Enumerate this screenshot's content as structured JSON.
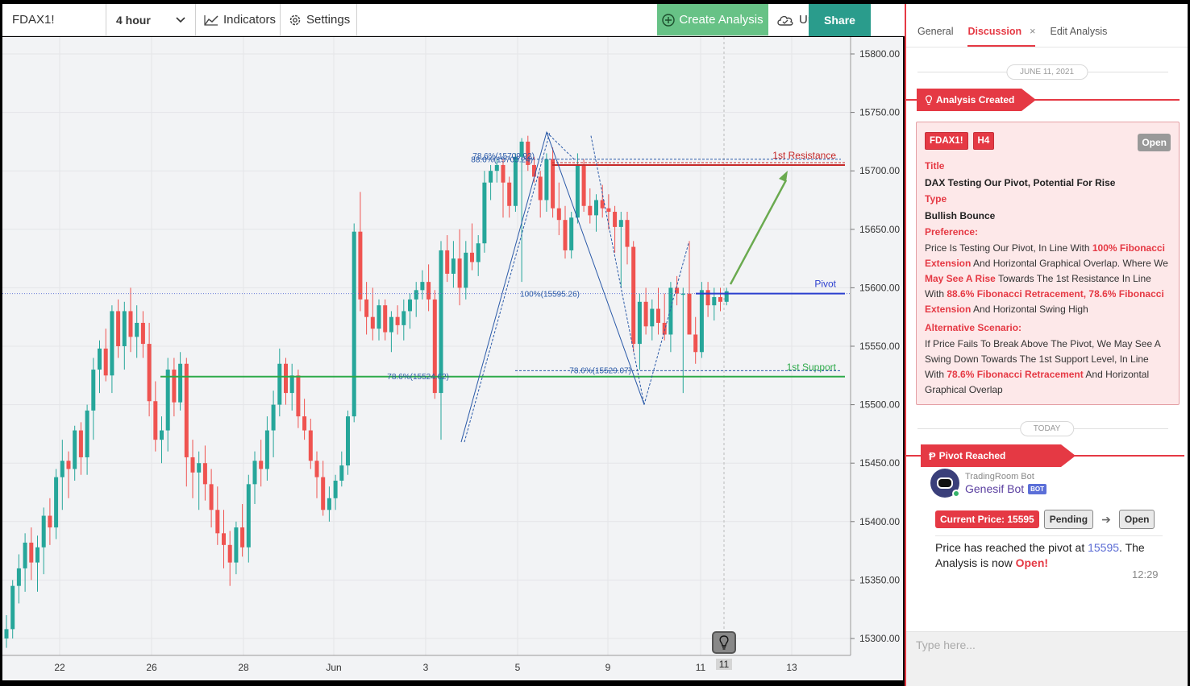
{
  "toolbar": {
    "symbol": "FDAX1!",
    "interval": "4 hour",
    "indicators_label": "Indicators",
    "settings_label": "Settings",
    "create_label": "Create Analysis",
    "layout_name": "Untitled",
    "share_label": "Share"
  },
  "chart": {
    "price_axis": [
      "15800.00",
      "15750.00",
      "15700.00",
      "15650.00",
      "15600.00",
      "15550.00",
      "15500.00",
      "15450.00",
      "15400.00",
      "15350.00",
      "15300.00"
    ],
    "time_axis": [
      "22",
      "26",
      "28",
      "Jun",
      "3",
      "5",
      "9",
      "11",
      "13"
    ],
    "current_label": "11",
    "lines": {
      "resistance": {
        "label": "1st Resistance",
        "color": "#c62828",
        "value": 15705
      },
      "pivot": {
        "label": "Pivot",
        "color": "#2b3fcf",
        "value": 15595
      },
      "support": {
        "label": "1st Support",
        "color": "#2eaa4a",
        "value": 15524
      }
    },
    "fib_labels": [
      "78.6%(15709.92)",
      "88.6%(15705.24)",
      "100%(15595.26)",
      "78.6%(15524.62)",
      "78.6%(15529.07)"
    ],
    "colors": {
      "up": "#26a69a",
      "down": "#ef5350",
      "pattern": "#2b5aa8",
      "target_arrow": "#6aaa4f"
    }
  },
  "panel": {
    "tabs": [
      "General",
      "Discussion",
      "Edit Analysis"
    ],
    "active_tab": "Discussion",
    "close_glyph": "×",
    "date1": "JUNE 11, 2021",
    "event1": "Analysis Created",
    "card": {
      "symbol_badge": "FDAX1!",
      "tf_badge": "H4",
      "status": "Open",
      "title_label": "Title",
      "title": "DAX Testing Our Pivot, Potential For Rise",
      "type_label": "Type",
      "type": "Bullish Bounce",
      "pref_label": "Preference:",
      "pref_parts": [
        {
          "t": "Price Is Testing Our Pivot, In Line With ",
          "h": false
        },
        {
          "t": "100% Fibonacci Extension",
          "h": true
        },
        {
          "t": " And Horizontal Graphical Overlap. Where We ",
          "h": false
        },
        {
          "t": "May See A Rise",
          "h": true
        },
        {
          "t": " Towards The 1st Resistance In Line With ",
          "h": false
        },
        {
          "t": "88.6% Fibonacci Retracement, 78.6% Fibonacci Extension",
          "h": true
        },
        {
          "t": " And Horizontal Swing High",
          "h": false
        }
      ],
      "alt_label": "Alternative Scenario:",
      "alt_parts": [
        {
          "t": "If Price Fails To Break Above The Pivot, We May See A Swing Down Towards The 1st Support Level, In Line With ",
          "h": false
        },
        {
          "t": "78.6% Fibonacci Retracement",
          "h": true
        },
        {
          "t": " And Horizontal Graphical Overlap",
          "h": false
        }
      ]
    },
    "date2": "TODAY",
    "event2": "Pivot Reached",
    "message": {
      "bot_small": "TradingRoom Bot",
      "bot_name": "Genesif Bot",
      "bot_tag": "BOT",
      "current_price": "Current Price: 15595",
      "from_status": "Pending",
      "to_status": "Open",
      "text_a": "Price has reached the pivot at ",
      "text_price": "15595",
      "text_b": ". The Analysis is now ",
      "text_open": "Open!",
      "time": "12:29"
    },
    "input_placeholder": "Type here..."
  }
}
